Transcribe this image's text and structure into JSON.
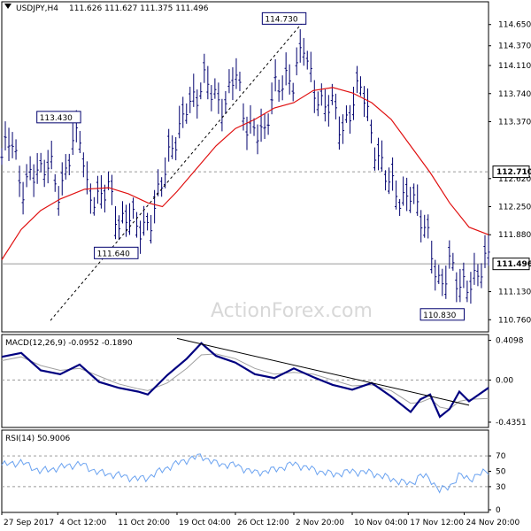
{
  "chart_data": [
    {
      "type": "ohlc",
      "symbol_label": "USDJPY,H4",
      "ohlc_label": "111.626 111.627 111.375 111.496",
      "ylim": [
        110.6,
        114.95
      ],
      "y_ticks": [
        "114.650",
        "114.370",
        "114.110",
        "113.740",
        "113.370",
        "112.620",
        "112.250",
        "111.880",
        "111.130",
        "110.760"
      ],
      "highlight_levels": [
        {
          "label": "112.710",
          "value": 112.71,
          "style": "dashed"
        },
        {
          "label": "111.496",
          "value": 111.496,
          "style": "current"
        }
      ],
      "annotations": [
        {
          "label": "114.730",
          "at": 0.625,
          "value": 114.73
        },
        {
          "label": "113.430",
          "at": 0.162,
          "value": 113.43
        },
        {
          "label": "111.640",
          "at": 0.28,
          "value": 111.64
        },
        {
          "label": "110.830",
          "at": 0.95,
          "value": 110.83
        }
      ],
      "price_path": [
        [
          0.0,
          112.9
        ],
        [
          0.02,
          113.1
        ],
        [
          0.04,
          112.5
        ],
        [
          0.06,
          112.75
        ],
        [
          0.08,
          112.6
        ],
        [
          0.1,
          112.85
        ],
        [
          0.12,
          112.45
        ],
        [
          0.14,
          112.9
        ],
        [
          0.16,
          113.2
        ],
        [
          0.175,
          112.55
        ],
        [
          0.2,
          112.3
        ],
        [
          0.22,
          112.45
        ],
        [
          0.24,
          112.05
        ],
        [
          0.26,
          112.2
        ],
        [
          0.28,
          111.85
        ],
        [
          0.3,
          112.0
        ],
        [
          0.32,
          112.45
        ],
        [
          0.34,
          112.75
        ],
        [
          0.36,
          113.15
        ],
        [
          0.38,
          113.7
        ],
        [
          0.4,
          113.6
        ],
        [
          0.42,
          113.9
        ],
        [
          0.44,
          113.75
        ],
        [
          0.46,
          113.55
        ],
        [
          0.48,
          114.0
        ],
        [
          0.5,
          113.4
        ],
        [
          0.52,
          113.3
        ],
        [
          0.54,
          113.1
        ],
        [
          0.56,
          113.85
        ],
        [
          0.58,
          114.0
        ],
        [
          0.6,
          113.8
        ],
        [
          0.62,
          114.4
        ],
        [
          0.64,
          113.9
        ],
        [
          0.66,
          113.5
        ],
        [
          0.68,
          113.55
        ],
        [
          0.7,
          113.3
        ],
        [
          0.72,
          113.6
        ],
        [
          0.74,
          113.8
        ],
        [
          0.76,
          113.2
        ],
        [
          0.78,
          112.85
        ],
        [
          0.8,
          112.45
        ],
        [
          0.82,
          112.3
        ],
        [
          0.84,
          112.55
        ],
        [
          0.86,
          112.05
        ],
        [
          0.88,
          111.7
        ],
        [
          0.9,
          111.25
        ],
        [
          0.92,
          111.5
        ],
        [
          0.94,
          111.1
        ],
        [
          0.96,
          111.3
        ],
        [
          1.0,
          111.5
        ]
      ],
      "ma_path": [
        [
          0.0,
          111.55
        ],
        [
          0.04,
          111.95
        ],
        [
          0.08,
          112.2
        ],
        [
          0.12,
          112.35
        ],
        [
          0.17,
          112.48
        ],
        [
          0.22,
          112.5
        ],
        [
          0.26,
          112.42
        ],
        [
          0.3,
          112.3
        ],
        [
          0.33,
          112.25
        ],
        [
          0.36,
          112.45
        ],
        [
          0.4,
          112.75
        ],
        [
          0.44,
          113.05
        ],
        [
          0.48,
          113.28
        ],
        [
          0.52,
          113.4
        ],
        [
          0.56,
          113.55
        ],
        [
          0.6,
          113.62
        ],
        [
          0.64,
          113.78
        ],
        [
          0.68,
          113.82
        ],
        [
          0.72,
          113.75
        ],
        [
          0.76,
          113.62
        ],
        [
          0.8,
          113.4
        ],
        [
          0.84,
          113.05
        ],
        [
          0.88,
          112.7
        ],
        [
          0.92,
          112.3
        ],
        [
          0.96,
          111.98
        ],
        [
          1.0,
          111.88
        ]
      ],
      "trendline": [
        [
          0.1,
          110.75
        ],
        [
          0.625,
          114.73
        ]
      ]
    },
    {
      "type": "line",
      "name": "MACD(12,26,9)",
      "label": "MACD(12,26,9) -0.0952 -0.1890",
      "ylim": [
        -0.49,
        0.47
      ],
      "y_ticks": [
        "0.4098",
        "0.00",
        "-0.4351"
      ],
      "series": [
        {
          "role": "macd",
          "values": [
            [
              0.0,
              0.24
            ],
            [
              0.04,
              0.28
            ],
            [
              0.08,
              0.1
            ],
            [
              0.12,
              0.06
            ],
            [
              0.16,
              0.16
            ],
            [
              0.2,
              -0.02
            ],
            [
              0.24,
              -0.08
            ],
            [
              0.28,
              -0.12
            ],
            [
              0.3,
              -0.15
            ],
            [
              0.34,
              0.05
            ],
            [
              0.38,
              0.22
            ],
            [
              0.41,
              0.38
            ],
            [
              0.44,
              0.25
            ],
            [
              0.48,
              0.18
            ],
            [
              0.52,
              0.06
            ],
            [
              0.56,
              0.02
            ],
            [
              0.6,
              0.12
            ],
            [
              0.64,
              0.03
            ],
            [
              0.68,
              -0.05
            ],
            [
              0.72,
              -0.1
            ],
            [
              0.76,
              -0.03
            ],
            [
              0.8,
              -0.17
            ],
            [
              0.84,
              -0.33
            ],
            [
              0.86,
              -0.2
            ],
            [
              0.88,
              -0.15
            ],
            [
              0.9,
              -0.38
            ],
            [
              0.92,
              -0.3
            ],
            [
              0.94,
              -0.12
            ],
            [
              0.96,
              -0.22
            ],
            [
              1.0,
              -0.08
            ]
          ]
        },
        {
          "role": "signal",
          "values": [
            [
              0.0,
              0.2
            ],
            [
              0.04,
              0.24
            ],
            [
              0.08,
              0.15
            ],
            [
              0.12,
              0.1
            ],
            [
              0.16,
              0.12
            ],
            [
              0.2,
              0.04
            ],
            [
              0.24,
              -0.04
            ],
            [
              0.28,
              -0.09
            ],
            [
              0.3,
              -0.11
            ],
            [
              0.34,
              -0.03
            ],
            [
              0.38,
              0.12
            ],
            [
              0.41,
              0.26
            ],
            [
              0.44,
              0.27
            ],
            [
              0.48,
              0.22
            ],
            [
              0.52,
              0.12
            ],
            [
              0.56,
              0.06
            ],
            [
              0.6,
              0.08
            ],
            [
              0.64,
              0.06
            ],
            [
              0.68,
              0.0
            ],
            [
              0.72,
              -0.06
            ],
            [
              0.76,
              -0.05
            ],
            [
              0.8,
              -0.11
            ],
            [
              0.84,
              -0.24
            ],
            [
              0.86,
              -0.23
            ],
            [
              0.88,
              -0.19
            ],
            [
              0.9,
              -0.28
            ],
            [
              0.92,
              -0.3
            ],
            [
              0.94,
              -0.22
            ],
            [
              0.96,
              -0.2
            ],
            [
              1.0,
              -0.19
            ]
          ]
        }
      ],
      "trendline": [
        [
          0.36,
          0.43
        ],
        [
          0.96,
          -0.26
        ]
      ]
    },
    {
      "type": "line",
      "name": "RSI(14)",
      "label": "RSI(14) 50.9006",
      "ylim": [
        0,
        100
      ],
      "y_ticks": [
        "70",
        "50",
        "30",
        "0"
      ],
      "reference_levels": [
        70,
        30
      ],
      "series": [
        {
          "role": "rsi",
          "values": [
            [
              0.0,
              58
            ],
            [
              0.04,
              62
            ],
            [
              0.08,
              50
            ],
            [
              0.12,
              55
            ],
            [
              0.16,
              60
            ],
            [
              0.2,
              48
            ],
            [
              0.24,
              45
            ],
            [
              0.28,
              40
            ],
            [
              0.3,
              42
            ],
            [
              0.34,
              55
            ],
            [
              0.38,
              65
            ],
            [
              0.41,
              70
            ],
            [
              0.44,
              60
            ],
            [
              0.48,
              58
            ],
            [
              0.52,
              48
            ],
            [
              0.56,
              52
            ],
            [
              0.6,
              60
            ],
            [
              0.64,
              52
            ],
            [
              0.68,
              46
            ],
            [
              0.72,
              50
            ],
            [
              0.76,
              48
            ],
            [
              0.8,
              40
            ],
            [
              0.84,
              33
            ],
            [
              0.86,
              45
            ],
            [
              0.88,
              40
            ],
            [
              0.9,
              25
            ],
            [
              0.92,
              30
            ],
            [
              0.94,
              45
            ],
            [
              0.96,
              40
            ],
            [
              1.0,
              51
            ]
          ]
        }
      ]
    }
  ],
  "x_labels": [
    {
      "label": "27 Sep 2017",
      "at": 0.0
    },
    {
      "label": "4 Oct 12:00",
      "at": 0.115
    },
    {
      "label": "11 Oct 20:00",
      "at": 0.235
    },
    {
      "label": "19 Oct 04:00",
      "at": 0.36
    },
    {
      "label": "26 Oct 12:00",
      "at": 0.48
    },
    {
      "label": "2 Nov 20:00",
      "at": 0.6
    },
    {
      "label": "10 Nov 04:00",
      "at": 0.72
    },
    {
      "label": "17 Nov 12:00",
      "at": 0.835
    },
    {
      "label": "24 Nov 20:00",
      "at": 0.95
    }
  ],
  "watermark": "ActionForex.com",
  "colors": {
    "price": "#00006e",
    "ma": "#e01010",
    "macd": "#000080",
    "signal": "#a0a0a0",
    "rsi": "#6aa2f0",
    "grid": "#9a9a9a",
    "watermark": "#d8d8d8",
    "trend": "#000000"
  }
}
